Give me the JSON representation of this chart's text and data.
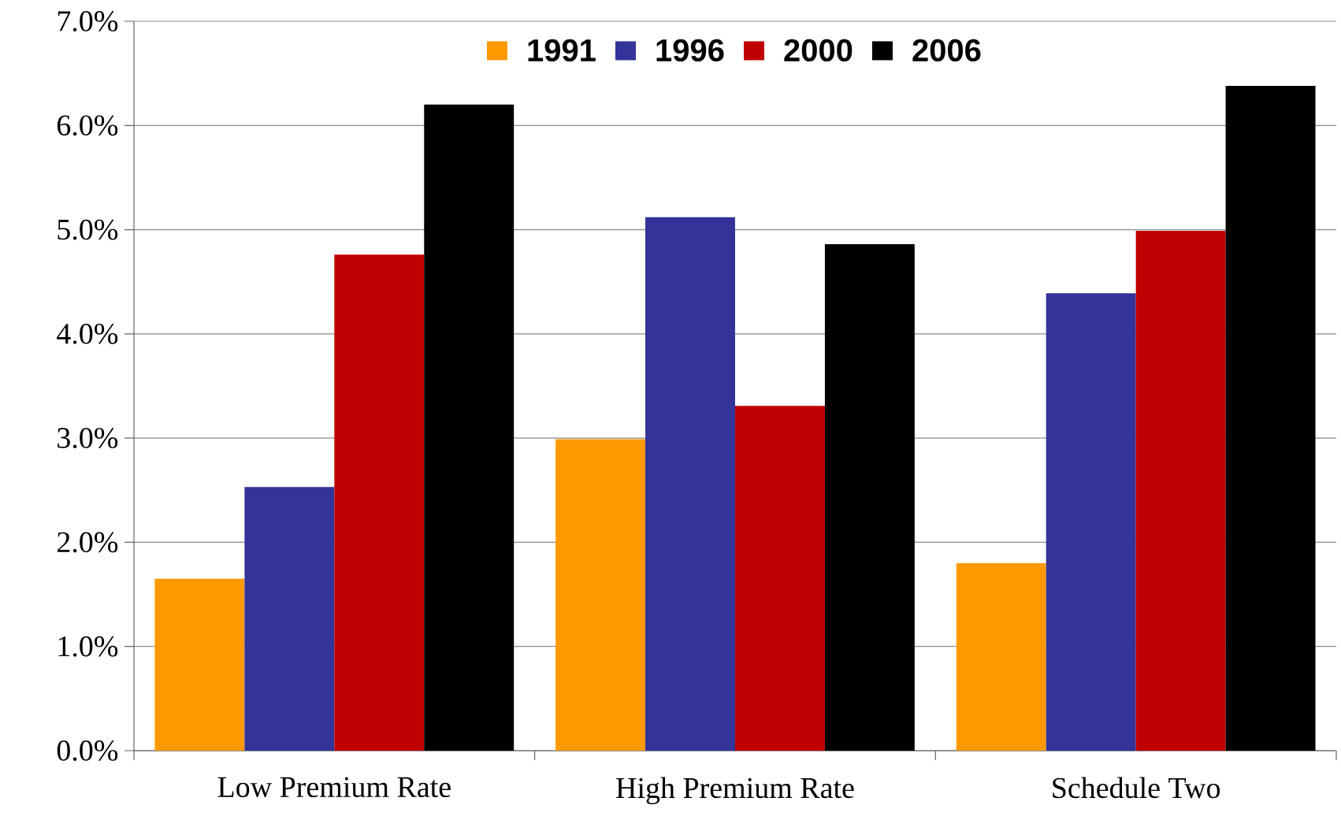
{
  "chart_data": {
    "type": "bar",
    "categories": [
      "Low Premium Rate",
      "High Premium Rate",
      "Schedule Two"
    ],
    "series": [
      {
        "name": "1991",
        "color": "#ff9900",
        "values": [
          1.65,
          2.99,
          1.8
        ]
      },
      {
        "name": "1996",
        "color": "#333399",
        "values": [
          2.53,
          5.12,
          4.39
        ]
      },
      {
        "name": "2000",
        "color": "#c00000",
        "values": [
          4.76,
          3.31,
          4.99
        ]
      },
      {
        "name": "2006",
        "color": "#000000",
        "values": [
          6.2,
          4.86,
          6.38
        ]
      }
    ],
    "ylim": [
      0,
      7
    ],
    "yticks": [
      {
        "value": 0,
        "label": "0.0%"
      },
      {
        "value": 1,
        "label": "1.0%"
      },
      {
        "value": 2,
        "label": "2.0%"
      },
      {
        "value": 3,
        "label": "3.0%"
      },
      {
        "value": 4,
        "label": "4.0%"
      },
      {
        "value": 5,
        "label": "5.0%"
      },
      {
        "value": 6,
        "label": "6.0%"
      },
      {
        "value": 7,
        "label": "7.0%"
      }
    ],
    "grid": "y",
    "legend": "top"
  }
}
